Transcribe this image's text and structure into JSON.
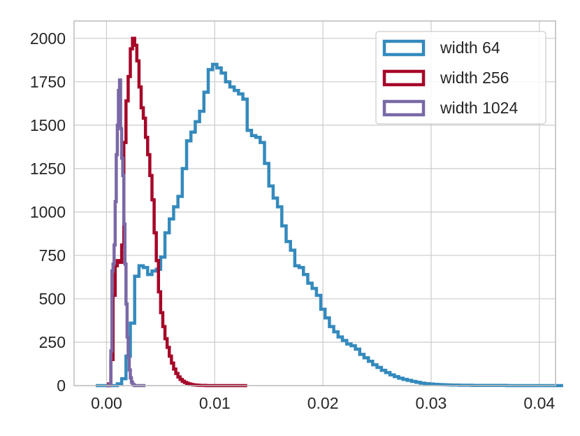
{
  "chart_data": {
    "type": "histogram-step",
    "title": "",
    "xlabel": "",
    "ylabel": "",
    "xlim": [
      -0.003,
      0.0415
    ],
    "ylim": [
      0,
      2100
    ],
    "xticks": [
      0.0,
      0.01,
      0.02,
      0.03,
      0.04
    ],
    "xtick_labels": [
      "0.00",
      "0.01",
      "0.02",
      "0.03",
      "0.04"
    ],
    "yticks": [
      0,
      250,
      500,
      750,
      1000,
      1250,
      1500,
      1750,
      2000
    ],
    "ytick_labels": [
      "0",
      "250",
      "500",
      "750",
      "1000",
      "1250",
      "1500",
      "1750",
      "2000"
    ],
    "grid": true,
    "legend_position": "top-right",
    "series": [
      {
        "name": "width 64",
        "color": "#348abd",
        "bins": {
          "start": -0.001,
          "width": 0.0004
        },
        "counts": [
          0,
          0,
          0,
          0,
          0,
          10,
          40,
          170,
          360,
          630,
          690,
          680,
          640,
          660,
          670,
          740,
          880,
          960,
          1030,
          1090,
          1250,
          1410,
          1460,
          1520,
          1580,
          1690,
          1820,
          1850,
          1830,
          1800,
          1750,
          1720,
          1700,
          1680,
          1650,
          1470,
          1440,
          1430,
          1400,
          1280,
          1150,
          1080,
          1030,
          920,
          830,
          780,
          690,
          680,
          640,
          590,
          560,
          520,
          440,
          390,
          340,
          310,
          280,
          260,
          240,
          230,
          210,
          180,
          160,
          140,
          120,
          105,
          88,
          75,
          62,
          52,
          43,
          36,
          30,
          24,
          19,
          14,
          11,
          9,
          7,
          6,
          5,
          4,
          3,
          3,
          2,
          2,
          2,
          1,
          1,
          1,
          1,
          1,
          1,
          1,
          1,
          0,
          0,
          0,
          0,
          0,
          0,
          0,
          0,
          0,
          0,
          0,
          0,
          0
        ]
      },
      {
        "name": "width 256",
        "color": "#a60628",
        "bins": {
          "start": 0.0,
          "width": 0.0002
        },
        "counts": [
          0,
          10,
          150,
          520,
          690,
          720,
          710,
          810,
          1400,
          1640,
          1780,
          1940,
          2000,
          1960,
          1870,
          1720,
          1600,
          1540,
          1430,
          1330,
          1210,
          1070,
          880,
          720,
          540,
          420,
          340,
          270,
          220,
          170,
          130,
          95,
          70,
          50,
          36,
          25,
          18,
          13,
          9,
          6,
          4,
          3,
          2,
          1,
          1,
          1,
          0,
          0,
          0,
          0,
          0,
          0,
          0,
          0,
          0,
          0,
          0,
          0,
          0,
          0,
          0,
          0,
          0,
          0,
          0
        ]
      },
      {
        "name": "width 1024",
        "color": "#7a68a6",
        "bins": {
          "start": 0.0,
          "width": 0.0001
        },
        "counts": [
          0,
          0,
          0,
          10,
          200,
          660,
          700,
          810,
          1060,
          1330,
          1500,
          1700,
          1760,
          1480,
          1310,
          1210,
          930,
          700,
          470,
          280,
          160,
          90,
          45,
          20,
          8,
          3,
          0,
          0,
          0,
          0,
          0,
          0,
          0,
          0,
          0,
          0
        ]
      }
    ]
  }
}
